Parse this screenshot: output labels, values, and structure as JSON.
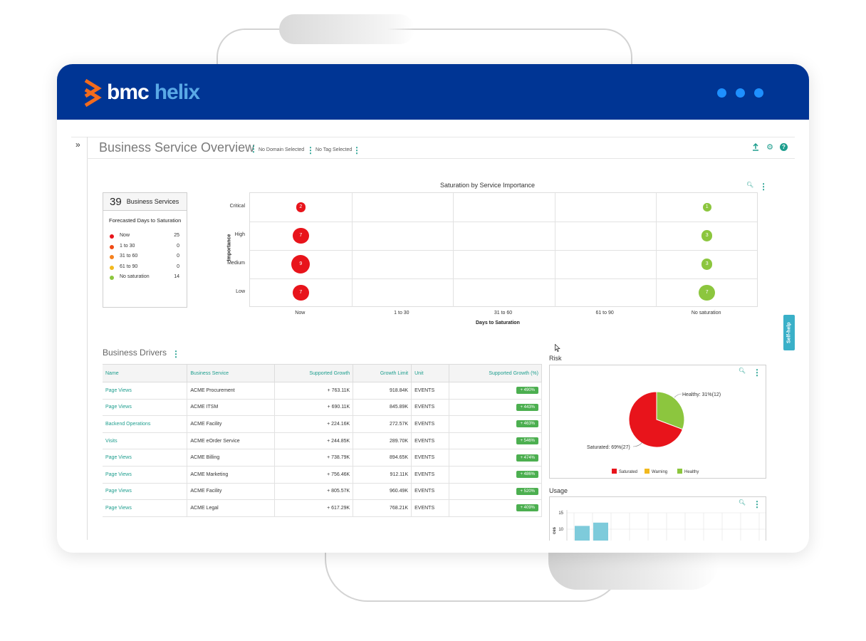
{
  "brand": {
    "bmc": "bmc",
    "helix": "helix",
    "header_color": "#003594",
    "accent": "#1e9e8e"
  },
  "page": {
    "title": "Business Service Overview",
    "domain_filter": "No Domain Selected",
    "tag_filter": "No Tag Selected",
    "expander": "»",
    "self_help": "Self-help"
  },
  "summary": {
    "count": "39",
    "label": "Business Services",
    "subtitle": "Forecasted Days to Saturation",
    "legend": [
      {
        "name": "Now",
        "value": "25",
        "color": "#e8141b"
      },
      {
        "name": "1 to 30",
        "value": "0",
        "color": "#f04a15"
      },
      {
        "name": "31 to 60",
        "value": "0",
        "color": "#f5821f"
      },
      {
        "name": "61 to 90",
        "value": "0",
        "color": "#f2b91e"
      },
      {
        "name": "No saturation",
        "value": "14",
        "color": "#8cc63e"
      }
    ]
  },
  "chart_data": [
    {
      "type": "scatter",
      "title": "Saturation by Service Importance",
      "xlabel": "Days to Saturation",
      "ylabel": "Importance",
      "x_categories": [
        "Now",
        "1 to 30",
        "31 to 60",
        "61 to 90",
        "No saturation"
      ],
      "y_categories": [
        "Critical",
        "High",
        "Medium",
        "Low"
      ],
      "points": [
        {
          "x": "Now",
          "y": "Critical",
          "count": "2",
          "color": "#e8141b"
        },
        {
          "x": "Now",
          "y": "High",
          "count": "7",
          "color": "#e8141b"
        },
        {
          "x": "Now",
          "y": "Medium",
          "count": "9",
          "color": "#e8141b"
        },
        {
          "x": "Now",
          "y": "Low",
          "count": "7",
          "color": "#e8141b"
        },
        {
          "x": "No saturation",
          "y": "Critical",
          "count": "1",
          "color": "#8cc63e"
        },
        {
          "x": "No saturation",
          "y": "High",
          "count": "3",
          "color": "#8cc63e"
        },
        {
          "x": "No saturation",
          "y": "Medium",
          "count": "3",
          "color": "#8cc63e"
        },
        {
          "x": "No saturation",
          "y": "Low",
          "count": "7",
          "color": "#8cc63e"
        }
      ]
    },
    {
      "type": "pie",
      "title": "Risk",
      "slices": [
        {
          "name": "Saturated",
          "label": "Saturated: 69%(27)",
          "value": 27,
          "percent": 69,
          "color": "#e8141b"
        },
        {
          "name": "Warning",
          "label": "",
          "value": 0,
          "percent": 0,
          "color": "#f2b91e"
        },
        {
          "name": "Healthy",
          "label": "Healthy: 31%(12)",
          "value": 12,
          "percent": 31,
          "color": "#8cc63e"
        }
      ],
      "legend": [
        "Saturated",
        "Warning",
        "Healthy"
      ]
    },
    {
      "type": "bar",
      "title": "Usage",
      "ylabel": "ces",
      "y_ticks": [
        "15",
        "10"
      ],
      "values": [
        11,
        12
      ]
    }
  ],
  "drivers": {
    "title": "Business Drivers",
    "columns": [
      "Name",
      "Business Service",
      "Supported Growth",
      "Growth Limit",
      "Unit",
      "Supported Growth (%)"
    ],
    "rows": [
      [
        "Page Views",
        "ACME Procurement",
        "+ 763.11K",
        "918.84K",
        "EVENTS",
        "+ 490%"
      ],
      [
        "Page Views",
        "ACME ITSM",
        "+ 690.11K",
        "845.89K",
        "EVENTS",
        "+ 443%"
      ],
      [
        "Backend Operations",
        "ACME Facility",
        "+ 224.16K",
        "272.57K",
        "EVENTS",
        "+ 463%"
      ],
      [
        "Visits",
        "ACME eOrder Service",
        "+ 244.85K",
        "289.70K",
        "EVENTS",
        "+ 546%"
      ],
      [
        "Page Views",
        "ACME Billing",
        "+ 738.79K",
        "894.65K",
        "EVENTS",
        "+ 474%"
      ],
      [
        "Page Views",
        "ACME Marketing",
        "+ 756.46K",
        "912.11K",
        "EVENTS",
        "+ 486%"
      ],
      [
        "Page Views",
        "ACME Facility",
        "+ 805.57K",
        "960.49K",
        "EVENTS",
        "+ 520%"
      ],
      [
        "Page Views",
        "ACME Legal",
        "+ 617.29K",
        "768.21K",
        "EVENTS",
        "+ 409%"
      ]
    ]
  }
}
